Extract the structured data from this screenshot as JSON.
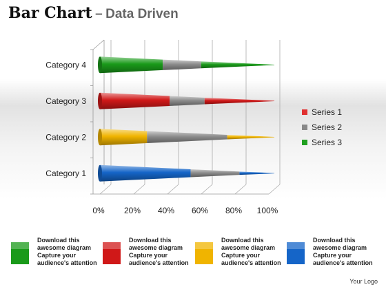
{
  "title": {
    "main": "Bar Chart",
    "dash": "–",
    "sub": "Data Driven"
  },
  "chart_data": {
    "type": "bar",
    "orientation": "horizontal",
    "stacked": true,
    "categories": [
      "Category 1",
      "Category 2",
      "Category 3",
      "Category 4"
    ],
    "series": [
      {
        "name": "Series 1",
        "color": "#e03030",
        "values": [
          52,
          27,
          40,
          36
        ]
      },
      {
        "name": "Series 2",
        "color": "#888888",
        "values": [
          28,
          46,
          20,
          22
        ]
      },
      {
        "name": "Series 3",
        "color": "#20a020",
        "values": [
          20,
          27,
          40,
          42
        ]
      }
    ],
    "segment_colors_by_category": [
      [
        "#1565c8",
        "#8c8c8c",
        "#1565c8"
      ],
      [
        "#f0b400",
        "#8c8c8c",
        "#f0b400"
      ],
      [
        "#d01818",
        "#8c8c8c",
        "#d01818"
      ],
      [
        "#1a9a1a",
        "#8c8c8c",
        "#1a9a1a"
      ]
    ],
    "x_ticks": [
      "0%",
      "20%",
      "40%",
      "60%",
      "80%",
      "100%"
    ],
    "xlim": [
      0,
      100
    ],
    "grid": true,
    "legend_position": "right"
  },
  "footer": [
    {
      "color": "#1a9a1a",
      "lines": [
        "Download this",
        "awesome diagram",
        "Capture your",
        "audience's attention"
      ]
    },
    {
      "color": "#d01818",
      "lines": [
        "Download this",
        "awesome diagram",
        "Capture your",
        "audience's attention"
      ]
    },
    {
      "color": "#f0b400",
      "lines": [
        "Download this",
        "awesome diagram",
        "Capture your",
        "audience's attention"
      ]
    },
    {
      "color": "#1565c8",
      "lines": [
        "Download this",
        "awesome diagram",
        "Capture your",
        "audience's attention"
      ]
    }
  ],
  "logo": "Your Logo"
}
